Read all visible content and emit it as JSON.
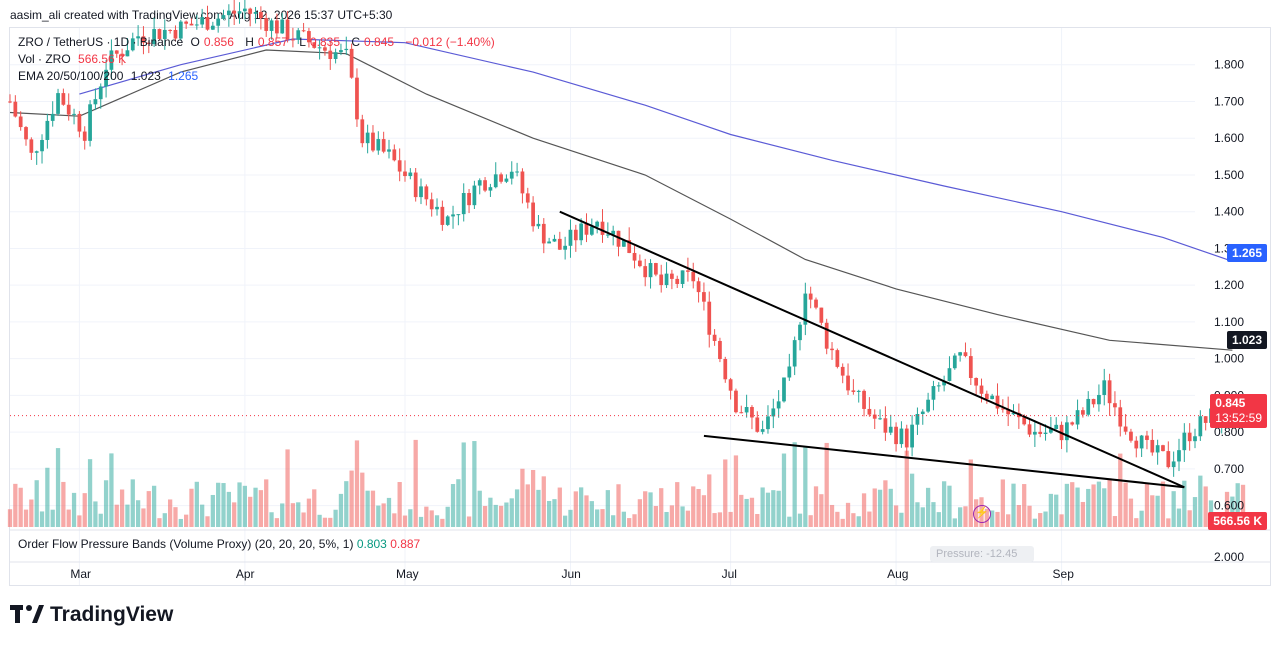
{
  "header": {
    "attribution": "aasim_ali created with TradingView.com, Aug 12, 2026 15:37 UTC+5:30"
  },
  "legend": {
    "symbol": "ZRO / TetherUS · 1D · Binance",
    "o_label": "O",
    "o_value": "0.856",
    "h_label": "H",
    "h_value": "0.857",
    "l_label": "L",
    "l_value": "0.835",
    "c_label": "C",
    "c_value": "0.845",
    "change": "−0.012 (−1.40%)",
    "vol_label": "Vol · ZRO",
    "vol_value": "566.56 K",
    "ema_label": "EMA 20/50/100/200",
    "ema_value_1": "1.023",
    "ema_value_2": "1.265"
  },
  "indicator": {
    "label": "Order Flow Pressure Bands (Volume Proxy) (20, 20, 20, 5%, 1)",
    "value_1": "0.803",
    "value_2": "0.887",
    "badge": "Pressure: -12.45",
    "axis_value": "2.000"
  },
  "price_tags": {
    "ema_200": "1.265",
    "ema_100": "1.023",
    "last_price": "0.845",
    "countdown": "13:52:59",
    "volume": "566.56 K"
  },
  "colors": {
    "up": "#26a69a",
    "down": "#ef5350",
    "ema_100": "#555555",
    "ema_200": "#5b5bd6",
    "trendline": "#000000"
  },
  "icons": {
    "lightning": "lightning-icon"
  },
  "branding": {
    "logo_text": "TradingView"
  },
  "chart_data": {
    "type": "candlestick",
    "title": "ZRO / TetherUS · 1D · Binance",
    "ylim": [
      0.55,
      1.9
    ],
    "y_ticks": [
      "1.800",
      "1.700",
      "1.600",
      "1.500",
      "1.400",
      "1.300",
      "1.200",
      "1.100",
      "1.000",
      "0.900",
      "0.800",
      "0.700",
      "0.600"
    ],
    "x_ticks": [
      {
        "label": "Mar",
        "date": "2026-03-01"
      },
      {
        "label": "Apr",
        "date": "2026-04-01"
      },
      {
        "label": "May",
        "date": "2026-05-01"
      },
      {
        "label": "Jun",
        "date": "2026-06-01"
      },
      {
        "label": "Jul",
        "date": "2026-07-01"
      },
      {
        "label": "Aug",
        "date": "2026-08-01"
      },
      {
        "label": "Sep",
        "date": "2026-09-01"
      }
    ],
    "x_range": [
      "2026-02-16",
      "2026-09-26"
    ],
    "price_anchors": [
      [
        "2026-02-16",
        1.7
      ],
      [
        "2026-02-20",
        1.55
      ],
      [
        "2026-02-25",
        1.72
      ],
      [
        "2026-03-02",
        1.62
      ],
      [
        "2026-03-06",
        1.8
      ],
      [
        "2026-03-12",
        1.88
      ],
      [
        "2026-03-20",
        1.9
      ],
      [
        "2026-04-01",
        1.95
      ],
      [
        "2026-04-10",
        1.88
      ],
      [
        "2026-04-20",
        1.82
      ],
      [
        "2026-04-23",
        1.6
      ],
      [
        "2026-04-28",
        1.55
      ],
      [
        "2026-05-04",
        1.45
      ],
      [
        "2026-05-09",
        1.38
      ],
      [
        "2026-05-15",
        1.48
      ],
      [
        "2026-05-21",
        1.52
      ],
      [
        "2026-05-26",
        1.35
      ],
      [
        "2026-05-30",
        1.3
      ],
      [
        "2026-06-06",
        1.38
      ],
      [
        "2026-06-12",
        1.3
      ],
      [
        "2026-06-18",
        1.2
      ],
      [
        "2026-06-24",
        1.22
      ],
      [
        "2026-06-28",
        1.05
      ],
      [
        "2026-07-02",
        0.88
      ],
      [
        "2026-07-07",
        0.8
      ],
      [
        "2026-07-12",
        0.95
      ],
      [
        "2026-07-15",
        1.2
      ],
      [
        "2026-07-19",
        1.05
      ],
      [
        "2026-07-24",
        0.9
      ],
      [
        "2026-07-29",
        0.82
      ],
      [
        "2026-08-03",
        0.78
      ],
      [
        "2026-08-08",
        0.9
      ],
      [
        "2026-08-13",
        1.0
      ],
      [
        "2026-08-17",
        0.92
      ],
      [
        "2026-08-22",
        0.85
      ],
      [
        "2026-08-27",
        0.8
      ],
      [
        "2026-09-01",
        0.8
      ],
      [
        "2026-09-05",
        0.85
      ],
      [
        "2026-09-09",
        0.92
      ],
      [
        "2026-09-13",
        0.82
      ],
      [
        "2026-09-17",
        0.75
      ],
      [
        "2026-09-21",
        0.72
      ],
      [
        "2026-09-25",
        0.8
      ],
      [
        "2026-09-30",
        0.85
      ],
      [
        "2026-10-03",
        0.86
      ],
      [
        "2026-10-05",
        0.845
      ]
    ],
    "ema_100": [
      [
        "2026-02-16",
        1.67
      ],
      [
        "2026-03-01",
        1.66
      ],
      [
        "2026-03-20",
        1.78
      ],
      [
        "2026-04-05",
        1.84
      ],
      [
        "2026-04-20",
        1.83
      ],
      [
        "2026-05-05",
        1.72
      ],
      [
        "2026-05-25",
        1.6
      ],
      [
        "2026-06-15",
        1.5
      ],
      [
        "2026-07-01",
        1.38
      ],
      [
        "2026-07-15",
        1.27
      ],
      [
        "2026-08-01",
        1.19
      ],
      [
        "2026-08-20",
        1.12
      ],
      [
        "2026-09-10",
        1.05
      ],
      [
        "2026-10-03",
        1.023
      ]
    ],
    "ema_200": [
      [
        "2026-03-01",
        1.72
      ],
      [
        "2026-03-20",
        1.8
      ],
      [
        "2026-04-10",
        1.87
      ],
      [
        "2026-05-01",
        1.86
      ],
      [
        "2026-05-25",
        1.78
      ],
      [
        "2026-06-15",
        1.69
      ],
      [
        "2026-07-01",
        1.61
      ],
      [
        "2026-07-20",
        1.54
      ],
      [
        "2026-08-10",
        1.47
      ],
      [
        "2026-09-01",
        1.4
      ],
      [
        "2026-09-20",
        1.33
      ],
      [
        "2026-10-03",
        1.265
      ]
    ],
    "trendline_upper": [
      [
        "2026-05-30",
        1.4
      ],
      [
        "2026-09-24",
        0.65
      ]
    ],
    "trendline_lower": [
      [
        "2026-06-26",
        0.79
      ],
      [
        "2026-09-24",
        0.65
      ]
    ],
    "last_price": 0.845
  }
}
